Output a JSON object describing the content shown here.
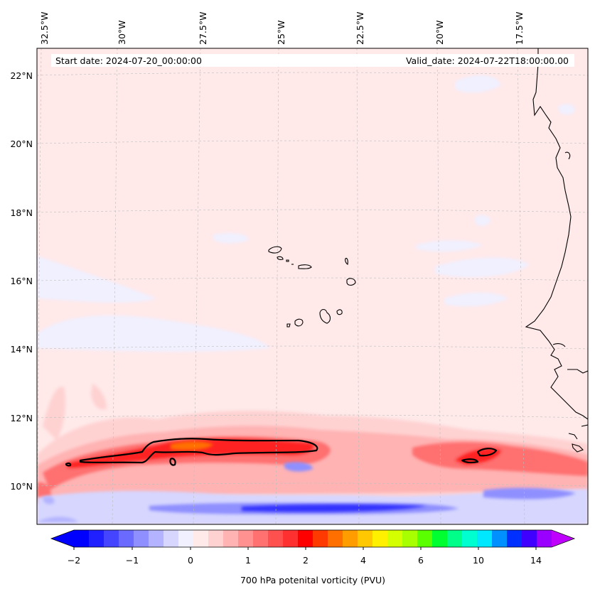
{
  "map": {
    "start_date_label": "Start date: 2024-07-20_00:00:00",
    "valid_date_label": "Valid_date: 2024-07-22T18:00:00.00",
    "lon_labels": [
      "32.5°W",
      "30°W",
      "27.5°W",
      "25°W",
      "22.5°W",
      "20°W",
      "17.5°W"
    ],
    "lat_labels": [
      "22°N",
      "20°N",
      "18°N",
      "16°N",
      "14°N",
      "12°N",
      "10°N"
    ],
    "land_outline_color": "#000000",
    "contour_color": "#000000"
  },
  "colorbar": {
    "label": "700 hPa potenital vorticity (PVU)",
    "ticks": [
      "−2",
      "−1",
      "0",
      "1",
      "2",
      "4",
      "6",
      "10",
      "14"
    ],
    "colors": [
      "#0000ff",
      "#2020ff",
      "#4545ff",
      "#6a6aff",
      "#8f8fff",
      "#b3b3ff",
      "#d6d6ff",
      "#f0f0ff",
      "#ffe9e9",
      "#ffd2d2",
      "#ffb3b3",
      "#ff9191",
      "#ff7070",
      "#ff5050",
      "#ff3030",
      "#ff0000",
      "#ff3a00",
      "#ff6f00",
      "#ff9d00",
      "#ffc800",
      "#fff000",
      "#d4ff00",
      "#a8ff00",
      "#5aff00",
      "#00ff30",
      "#00ff88",
      "#00ffd0",
      "#00e8ff",
      "#0090ff",
      "#0030ff",
      "#4000ff",
      "#9a00ff"
    ],
    "under_color": "#0000ff",
    "over_color": "#c000ff"
  }
}
